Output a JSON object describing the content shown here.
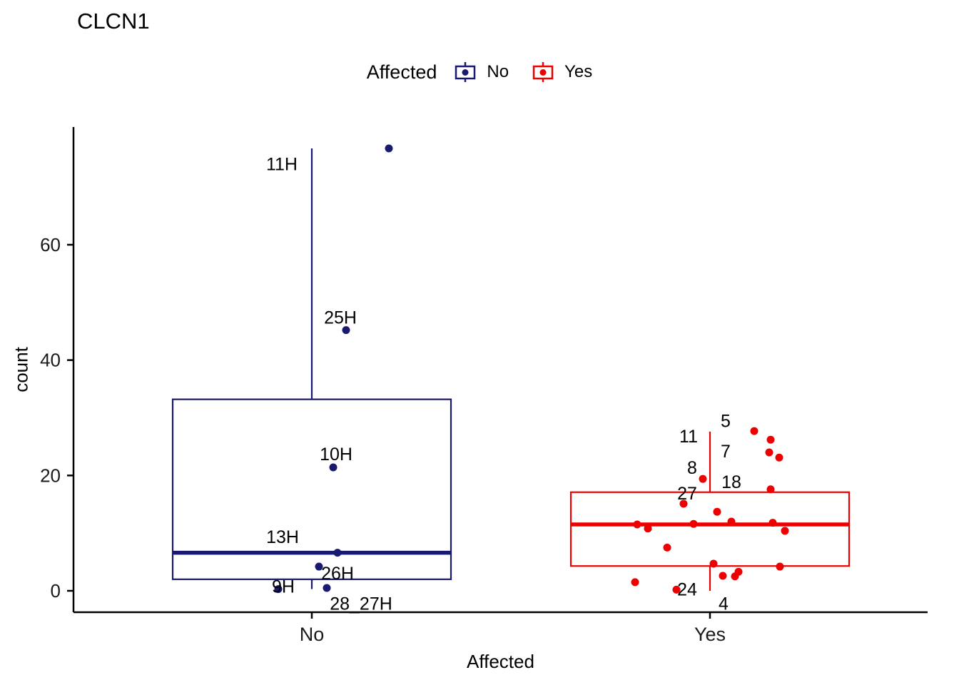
{
  "title": "CLCN1",
  "legend": {
    "title": "Affected",
    "entries": [
      {
        "label": "No",
        "color": "#191970"
      },
      {
        "label": "Yes",
        "color": "#EE0000"
      }
    ]
  },
  "axes": {
    "x_label": "Affected",
    "y_label": "count"
  },
  "chart_data": {
    "type": "boxplot",
    "title": "CLCN1",
    "xlabel": "Affected",
    "ylabel": "count",
    "ylim": [
      -4,
      80
    ],
    "yticks": [
      0,
      20,
      40,
      60
    ],
    "legend_position": "top",
    "grid": false,
    "groups": [
      {
        "category": "No",
        "color": "#191970",
        "box": {
          "q1": 2.0,
          "median": 6.6,
          "q3": 33.2,
          "whisker_low": 0.3,
          "whisker_high": 76.7
        },
        "points": [
          {
            "value": 76.7,
            "dx": 108
          },
          {
            "value": 45.2,
            "dx": 48
          },
          {
            "value": 21.4,
            "dx": 30
          },
          {
            "value": 6.6,
            "dx": 36
          },
          {
            "value": 4.2,
            "dx": 10
          },
          {
            "value": 0.3,
            "dx": -47
          },
          {
            "value": 0.5,
            "dx": 21
          }
        ],
        "annotations": [
          {
            "text": "11H",
            "dx": -42,
            "value": 73.9
          },
          {
            "text": "25H",
            "dx": 40,
            "value": 47.3
          },
          {
            "text": "10H",
            "dx": 34,
            "value": 23.6
          },
          {
            "text": "13H",
            "dx": -41,
            "value": 9.3
          },
          {
            "text": "26H",
            "dx": 36,
            "value": 3.0
          },
          {
            "text": "9H",
            "dx": -40,
            "value": 0.7
          },
          {
            "text": "28_27H",
            "dx": 69,
            "value": -2.3
          }
        ]
      },
      {
        "category": "Yes",
        "color": "#EE0000",
        "box": {
          "q1": 4.3,
          "median": 11.5,
          "q3": 17.1,
          "whisker_low": 0.0,
          "whisker_high": 27.6
        },
        "points": [
          {
            "value": 27.7,
            "dx": 62
          },
          {
            "value": 26.2,
            "dx": 85
          },
          {
            "value": 24.0,
            "dx": 83
          },
          {
            "value": 23.1,
            "dx": 97
          },
          {
            "value": 19.4,
            "dx": -10
          },
          {
            "value": 17.6,
            "dx": 85
          },
          {
            "value": 15.1,
            "dx": -37
          },
          {
            "value": 13.7,
            "dx": 10
          },
          {
            "value": 12.0,
            "dx": 30
          },
          {
            "value": 11.8,
            "dx": 88
          },
          {
            "value": 11.6,
            "dx": -23
          },
          {
            "value": 11.5,
            "dx": -102
          },
          {
            "value": 10.8,
            "dx": -87
          },
          {
            "value": 10.4,
            "dx": 105
          },
          {
            "value": 7.5,
            "dx": -60
          },
          {
            "value": 4.7,
            "dx": 5
          },
          {
            "value": 4.2,
            "dx": 98
          },
          {
            "value": 3.3,
            "dx": 40
          },
          {
            "value": 2.6,
            "dx": 18
          },
          {
            "value": 2.5,
            "dx": 35
          },
          {
            "value": 1.5,
            "dx": -105
          },
          {
            "value": 0.2,
            "dx": -47
          }
        ],
        "annotations": [
          {
            "text": "5",
            "dx": 22,
            "value": 29.4
          },
          {
            "text": "11",
            "dx": -30,
            "value": 26.7
          },
          {
            "text": "7",
            "dx": 22,
            "value": 24.1
          },
          {
            "text": "8",
            "dx": -25,
            "value": 21.3
          },
          {
            "text": "18",
            "dx": 30,
            "value": 18.8
          },
          {
            "text": "27",
            "dx": -32,
            "value": 16.8
          },
          {
            "text": "24",
            "dx": -32,
            "value": 0.2
          },
          {
            "text": "4",
            "dx": 19,
            "value": -2.3
          }
        ]
      }
    ]
  }
}
